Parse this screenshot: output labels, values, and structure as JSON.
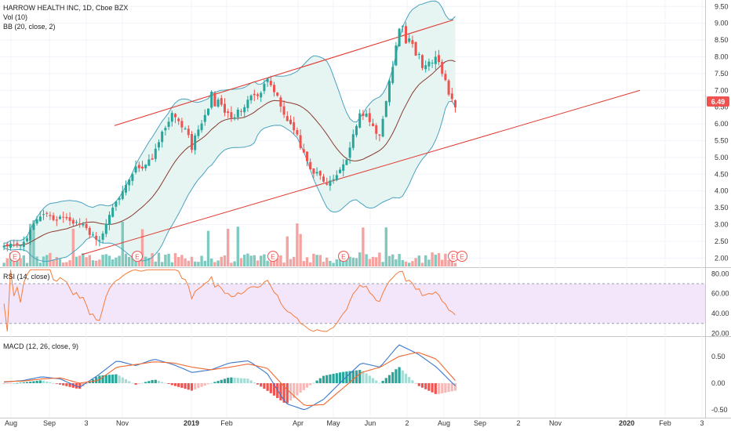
{
  "header": {
    "title": "HARROW HEALTH INC, 1D, Cboe BZX",
    "vol_label": "Vol (10)",
    "bb_label": "BB (20, close, 2)"
  },
  "rsi_label": "RSI (14, close)",
  "macd_label": "MACD (12, 26, close, 9)",
  "last_price_label": "6.49",
  "earnings_marker": "E",
  "colors": {
    "up": "#26a69a",
    "down": "#ef5350",
    "vol_up": "#7fc9bf",
    "vol_down": "#f4a3a0",
    "bb_band": "#4aa3c0",
    "bb_basis": "#8b3a2e",
    "bb_fill": "#e6f4f2",
    "trend": "#e0392f",
    "rsi_line": "#f57c3a",
    "rsi_fill": "#f3e6fb",
    "macd_line": "#3a78c9",
    "signal_line": "#f2682e",
    "last_price_bg": "#ef5350"
  },
  "chart_data": [
    {
      "type": "candlestick",
      "title": "HARROW HEALTH INC, 1D, Cboe BZX",
      "x_ticks": [
        "Aug",
        "Sep",
        "3",
        "Nov",
        "2019",
        "Feb",
        "Apr",
        "May",
        "Jun",
        "2",
        "Aug",
        "Sep",
        "2",
        "Nov",
        "2020",
        "Feb",
        "3"
      ],
      "y_ticks": [
        "9.50",
        "9.00",
        "8.50",
        "8.00",
        "7.50",
        "7.00",
        "6.50",
        "6.00",
        "5.50",
        "5.00",
        "4.50",
        "4.00",
        "3.50",
        "3.00",
        "2.50",
        "2.00"
      ],
      "ylim": [
        1.75,
        9.6
      ],
      "last_price": 6.49,
      "close_anchors": [
        2.4,
        2.45,
        3.3,
        3.15,
        3.05,
        2.5,
        3.7,
        4.6,
        5.1,
        6.5,
        5.3,
        6.8,
        6.2,
        6.7,
        7.2,
        6.3,
        5.0,
        4.2,
        4.6,
        6.5,
        5.6,
        8.9,
        7.9,
        7.8,
        6.49
      ],
      "earnings_markers": 7
    },
    {
      "type": "bar",
      "title": "Vol (10)",
      "values": []
    },
    {
      "type": "line",
      "title": "RSI (14, close)",
      "y_ticks": [
        "80.00",
        "60.00",
        "40.00",
        "20.00"
      ],
      "ylim": [
        18,
        85
      ],
      "band": [
        30,
        70
      ]
    },
    {
      "type": "line",
      "title": "MACD (12, 26, close, 9)",
      "y_ticks": [
        "0.50",
        "0.00",
        "-0.50"
      ],
      "ylim": [
        -0.6,
        0.85
      ],
      "series": [
        {
          "name": "MACD",
          "values": [
            0.02,
            0.05,
            0.12,
            0.08,
            -0.08,
            0.15,
            0.42,
            0.33,
            0.45,
            0.35,
            0.2,
            0.25,
            0.38,
            0.42,
            0.18,
            -0.38,
            -0.5,
            -0.3,
            0.05,
            0.38,
            0.3,
            0.72,
            0.55,
            0.3,
            -0.05
          ]
        },
        {
          "name": "Signal",
          "values": [
            0.03,
            0.04,
            0.08,
            0.1,
            0.0,
            0.05,
            0.3,
            0.35,
            0.4,
            0.38,
            0.3,
            0.25,
            0.3,
            0.36,
            0.28,
            -0.1,
            -0.42,
            -0.4,
            -0.1,
            0.2,
            0.3,
            0.5,
            0.58,
            0.45,
            0.05
          ]
        }
      ]
    }
  ]
}
